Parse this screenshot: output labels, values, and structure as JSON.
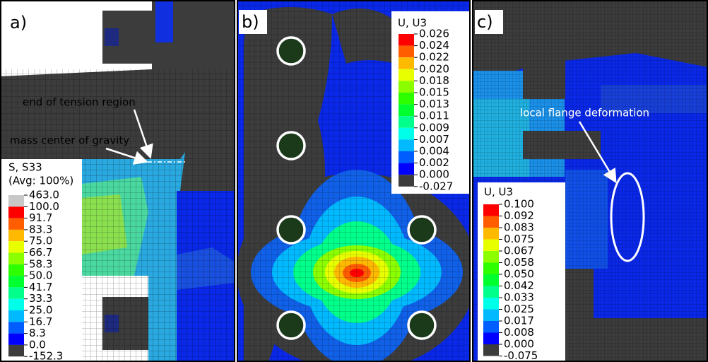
{
  "panels": [
    {
      "label": "a)",
      "annotations": [
        "end of tension region",
        "mass center of gravity"
      ],
      "legend": {
        "title": "S, S33",
        "subtitle": "(Avg: 100%)",
        "values": [
          "463.0",
          "100.0",
          "91.7",
          "83.3",
          "75.0",
          "66.7",
          "58.3",
          "50.0",
          "41.7",
          "33.3",
          "25.0",
          "16.7",
          "8.3",
          "0.0",
          "-152.3"
        ]
      }
    },
    {
      "label": "b)",
      "legend": {
        "title": "U, U3",
        "values": [
          "0.026",
          "0.024",
          "0.022",
          "0.020",
          "0.018",
          "0.015",
          "0.013",
          "0.011",
          "0.009",
          "0.007",
          "0.004",
          "0.002",
          "0.000",
          "-0.027"
        ]
      }
    },
    {
      "label": "c)",
      "annotations": [
        "local flange deformation"
      ],
      "legend": {
        "title": "U, U3",
        "values": [
          "0.100",
          "0.092",
          "0.083",
          "0.075",
          "0.067",
          "0.058",
          "0.050",
          "0.042",
          "0.033",
          "0.025",
          "0.017",
          "0.008",
          "0.000",
          "-0.075"
        ]
      }
    }
  ]
}
